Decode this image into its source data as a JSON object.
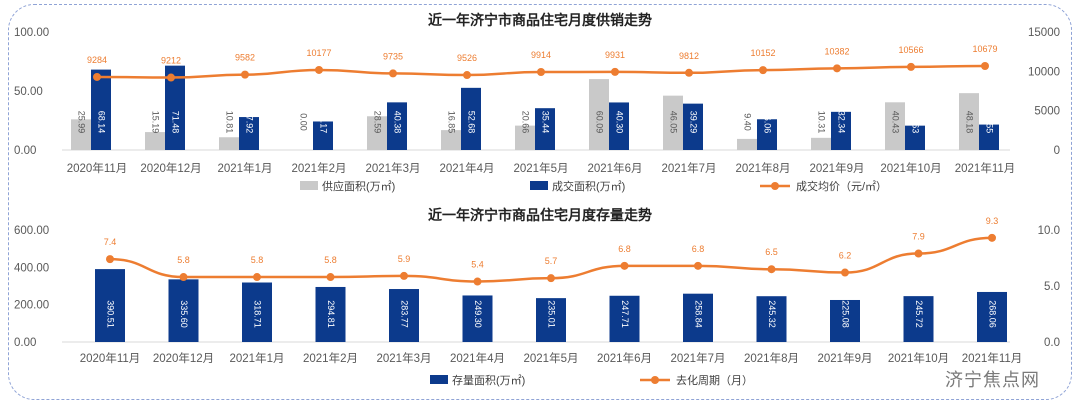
{
  "colors": {
    "supply": "#c9c9c9",
    "deal": "#0c3a8c",
    "line": "#ed7d31",
    "axis": "#595959"
  },
  "watermark": "济宁焦点网",
  "chart_data": [
    {
      "type": "bar",
      "title": "近一年济宁市商品住宅月度供销走势",
      "categories": [
        "2020年11月",
        "2020年12月",
        "2021年1月",
        "2021年2月",
        "2021年3月",
        "2021年4月",
        "2021年5月",
        "2021年6月",
        "2021年7月",
        "2021年8月",
        "2021年9月",
        "2021年10月",
        "2021年11月"
      ],
      "series": [
        {
          "name": "供应面积(万㎡)",
          "kind": "bar",
          "axis": "left",
          "values": [
            25.99,
            15.19,
            10.81,
            0.0,
            28.59,
            16.85,
            20.66,
            60.09,
            46.05,
            9.4,
            10.31,
            40.43,
            48.18
          ]
        },
        {
          "name": "成交面积(万㎡)",
          "kind": "bar",
          "axis": "left",
          "values": [
            68.14,
            71.48,
            27.92,
            24.17,
            40.38,
            52.68,
            35.44,
            40.3,
            39.29,
            26.06,
            32.34,
            20.63,
            21.55
          ]
        },
        {
          "name": "成交均价（元/㎡）",
          "kind": "line",
          "axis": "right",
          "values": [
            9284,
            9212,
            9582,
            10177,
            9735,
            9526,
            9914,
            9931,
            9812,
            10152,
            10382,
            10566,
            10679
          ]
        }
      ],
      "ylim": [
        0,
        100
      ],
      "yticks": [
        "0.00",
        "50.00",
        "100.00"
      ],
      "y2lim": [
        0,
        15000
      ],
      "y2ticks": [
        "0",
        "5000",
        "10000",
        "15000"
      ],
      "legend": "bottom"
    },
    {
      "type": "bar",
      "title": "近一年济宁市商品住宅月度存量走势",
      "categories": [
        "2020年11月",
        "2020年12月",
        "2021年1月",
        "2021年2月",
        "2021年3月",
        "2021年4月",
        "2021年5月",
        "2021年6月",
        "2021年7月",
        "2021年8月",
        "2021年9月",
        "2021年10月",
        "2021年11月"
      ],
      "series": [
        {
          "name": "存量面积(万㎡)",
          "kind": "bar",
          "axis": "left",
          "values": [
            390.51,
            335.6,
            318.71,
            294.81,
            283.77,
            249.3,
            235.01,
            247.71,
            258.84,
            245.32,
            225.08,
            245.72,
            268.06
          ]
        },
        {
          "name": "去化周期（月）",
          "kind": "line",
          "axis": "right",
          "values": [
            7.4,
            5.8,
            5.8,
            5.8,
            5.9,
            5.4,
            5.7,
            6.8,
            6.8,
            6.5,
            6.2,
            7.9,
            9.3
          ]
        }
      ],
      "ylim": [
        0,
        600
      ],
      "yticks": [
        "0.00",
        "200.00",
        "400.00",
        "600.00"
      ],
      "y2lim": [
        0,
        10
      ],
      "y2ticks": [
        "0.0",
        "5.0",
        "10.0"
      ],
      "legend": "bottom"
    }
  ]
}
